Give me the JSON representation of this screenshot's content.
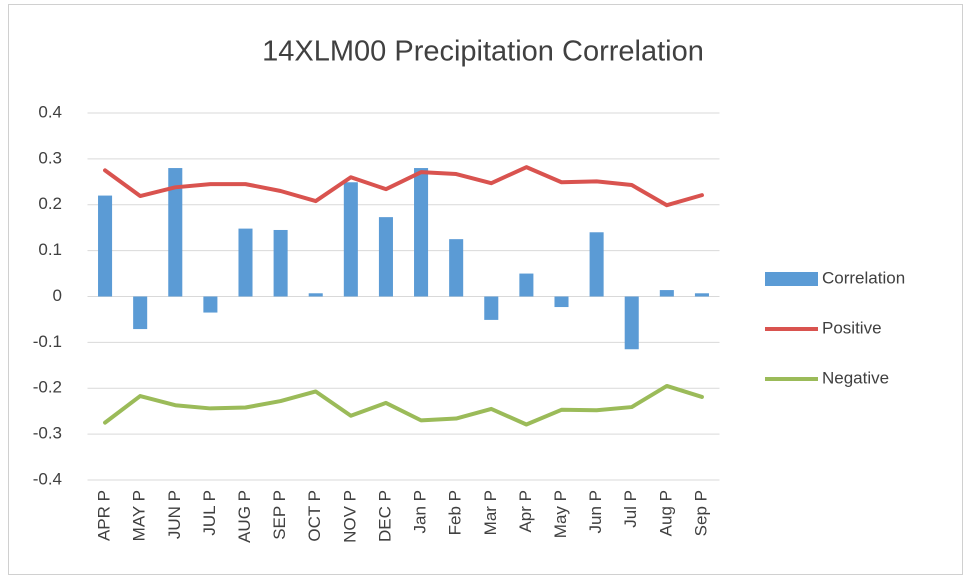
{
  "chart_data": {
    "type": "combo",
    "title": "14XLM00 Precipitation Correlation",
    "categories": [
      "APR P",
      "MAY P",
      "JUN P",
      "JUL P",
      "AUG P",
      "SEP P",
      "OCT P",
      "NOV P",
      "DEC P",
      "Jan P",
      "Feb P",
      "Mar P",
      "Apr P",
      "May P",
      "Jun P",
      "Jul P",
      "Aug P",
      "Sep P"
    ],
    "series": [
      {
        "name": "Correlation",
        "type": "bar",
        "color": "#5b9bd5",
        "values": [
          0.22,
          -0.071,
          0.28,
          -0.035,
          0.148,
          0.145,
          0.007,
          0.249,
          0.173,
          0.28,
          0.125,
          -0.051,
          0.05,
          -0.023,
          0.14,
          -0.115,
          0.014,
          0.007
        ]
      },
      {
        "name": "Positive",
        "type": "line",
        "color": "#d9534f",
        "values": [
          0.275,
          0.219,
          0.238,
          0.245,
          0.245,
          0.23,
          0.208,
          0.26,
          0.234,
          0.271,
          0.267,
          0.247,
          0.282,
          0.249,
          0.251,
          0.243,
          0.199,
          0.221
        ]
      },
      {
        "name": "Negative",
        "type": "line",
        "color": "#9bbb59",
        "values": [
          -0.275,
          -0.217,
          -0.237,
          -0.244,
          -0.242,
          -0.228,
          -0.207,
          -0.26,
          -0.232,
          -0.27,
          -0.266,
          -0.245,
          -0.279,
          -0.247,
          -0.248,
          -0.241,
          -0.195,
          -0.219
        ]
      }
    ],
    "ylim": [
      -0.4,
      0.4
    ],
    "yticks": [
      -0.4,
      -0.3,
      -0.2,
      -0.1,
      0,
      0.1,
      0.2,
      0.3,
      0.4
    ],
    "grid": true,
    "legend": "right"
  }
}
